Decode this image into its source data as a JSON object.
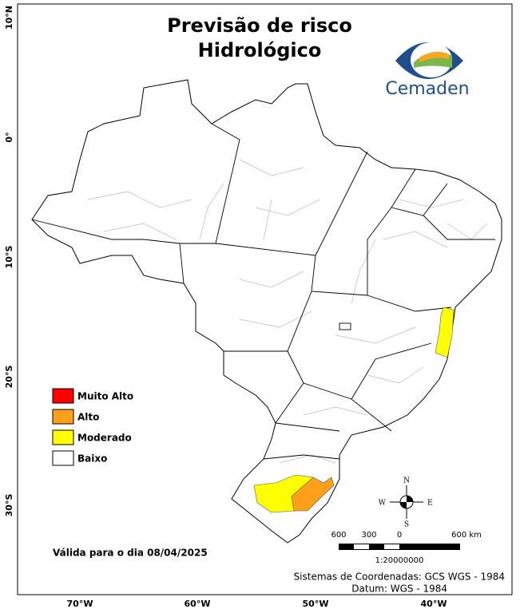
{
  "title": [
    "Previsão de risco",
    "Hidrológico"
  ],
  "logo": "Cemaden",
  "legend": [
    {
      "label": "Muito Alto",
      "color": "#ff0000"
    },
    {
      "label": "Alto",
      "color": "#ff9f1a"
    },
    {
      "label": "Moderado",
      "color": "#ffff00"
    },
    {
      "label": "Baixo",
      "color": "#ffffff"
    }
  ],
  "valid_date": "Válida para o dia 08/04/2025",
  "compass": {
    "n": "N",
    "s": "S",
    "e": "E",
    "w": "W"
  },
  "scale": {
    "labels": [
      "600",
      "300",
      "0",
      "600 km"
    ],
    "ratio": "1:20000000"
  },
  "credits": [
    "Sistemas de Coordenadas: GCS WGS - 1984",
    "Datum: WGS - 1984"
  ],
  "axes": {
    "lat": [
      "10°N",
      "0°",
      "10°S",
      "20°S",
      "30°S"
    ],
    "lon": [
      "70°W",
      "60°W",
      "50°W",
      "40°W"
    ]
  }
}
